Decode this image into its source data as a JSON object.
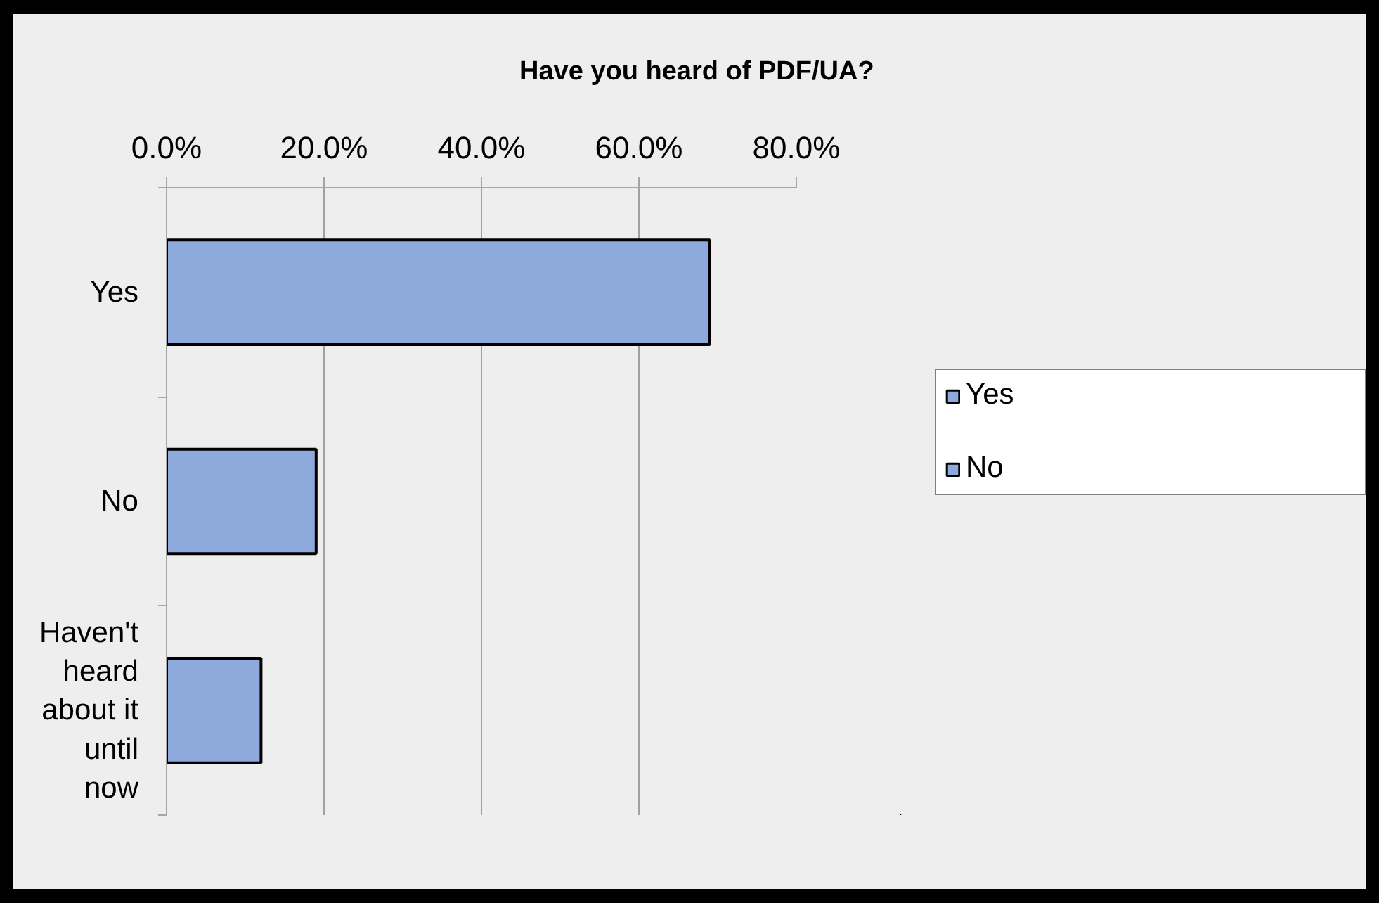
{
  "chart_data": {
    "type": "bar",
    "orientation": "horizontal",
    "stacked": true,
    "title": "Have you heard of PDF/UA?",
    "categories": [
      "Yes",
      "No",
      "Haven't heard about it until now"
    ],
    "series": [
      {
        "name": "Yes",
        "color": "#8eaadc",
        "values": [
          69,
          null,
          null
        ]
      },
      {
        "name": "No",
        "color": "#8eaadc",
        "values": [
          null,
          19,
          null
        ]
      },
      {
        "color": "#8eaadc",
        "values": [
          null,
          null,
          12
        ]
      }
    ],
    "xlim": [
      0,
      80
    ],
    "xticks": [
      {
        "value": 0,
        "label": "0.0%"
      },
      {
        "value": 20,
        "label": "20.0%"
      },
      {
        "value": 40,
        "label": "40.0%"
      },
      {
        "value": 60,
        "label": "60.0%"
      },
      {
        "value": 80,
        "label": "80.0%"
      }
    ],
    "grid": "x",
    "legend": "right"
  }
}
